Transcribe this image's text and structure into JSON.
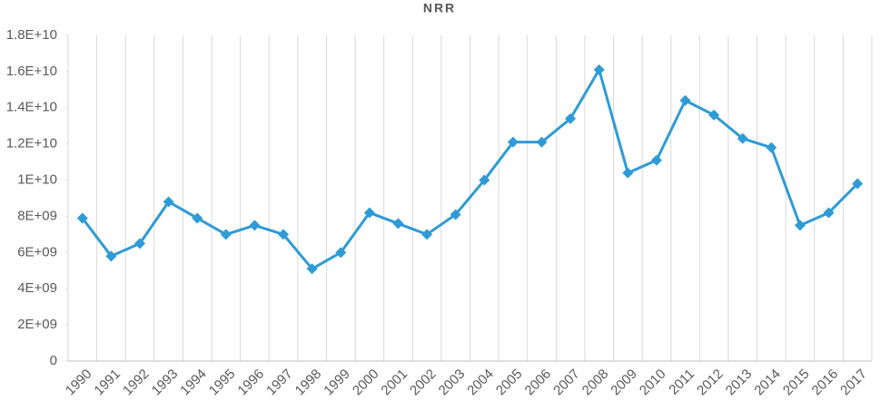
{
  "chart_data": {
    "type": "line",
    "title": "NRR",
    "categories": [
      "1990",
      "1991",
      "1992",
      "1993",
      "1994",
      "1995",
      "1996",
      "1997",
      "1998",
      "1999",
      "2000",
      "2001",
      "2002",
      "2003",
      "2004",
      "2005",
      "2006",
      "2007",
      "2008",
      "2009",
      "2010",
      "2011",
      "2012",
      "2013",
      "2014",
      "2015",
      "2016",
      "2017"
    ],
    "series": [
      {
        "name": "NRR",
        "color": "#2e9bd6",
        "values": [
          7900000000,
          5800000000,
          6500000000,
          8800000000,
          7900000000,
          7000000000,
          7500000000,
          7000000000,
          5100000000,
          6000000000,
          8200000000,
          7600000000,
          7000000000,
          8100000000,
          10000000000,
          12100000000,
          12100000000,
          13400000000,
          16100000000,
          10400000000,
          11100000000,
          14400000000,
          13600000000,
          12300000000,
          11800000000,
          7500000000,
          8200000000,
          9800000000
        ]
      }
    ],
    "ylim": [
      0,
      18000000000
    ],
    "yticks": [
      0,
      {
        "value": 2000000000,
        "label": "2E+09"
      },
      {
        "value": 4000000000,
        "label": "4E+09"
      },
      {
        "value": 6000000000,
        "label": "6E+09"
      },
      {
        "value": 8000000000,
        "label": "8E+09"
      },
      {
        "value": 10000000000,
        "label": "1E+10"
      },
      {
        "value": 12000000000,
        "label": "1.2E+10"
      },
      {
        "value": 14000000000,
        "label": "1.4E+10"
      },
      {
        "value": 16000000000,
        "label": "1.6E+10"
      },
      {
        "value": 18000000000,
        "label": "1.8E+10"
      }
    ],
    "grid": "x"
  }
}
